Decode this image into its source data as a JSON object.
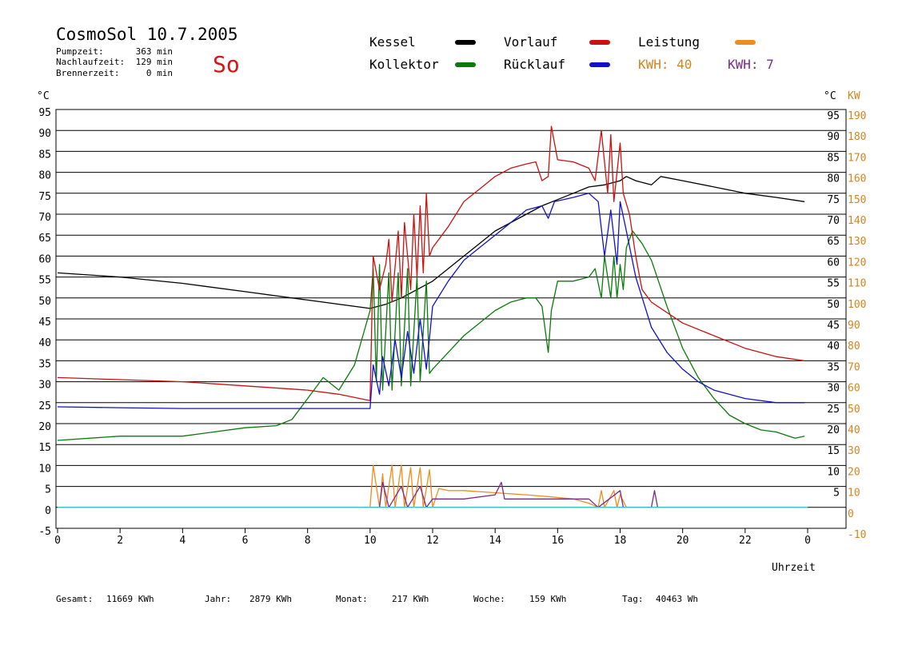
{
  "header": {
    "title": "CosmoSol 10.7.2005",
    "day_label": "So",
    "stats": [
      {
        "label": "Pumpzeit:",
        "value": "363 min"
      },
      {
        "label": "Nachlaufzeit:",
        "value": "129 min"
      },
      {
        "label": "Brennerzeit:",
        "value": "0 min"
      }
    ]
  },
  "legend": {
    "kessel": "Kessel",
    "kollektor": "Kollektor",
    "vorlauf": "Vorlauf",
    "ruecklauf": "Rücklauf",
    "leistung": "Leistung",
    "kwh1": "KWH: 40",
    "kwh2": "KWH: 7"
  },
  "footer": {
    "gesamt_label": "Gesamt:",
    "gesamt_value": "11669 KWh",
    "jahr_label": "Jahr:",
    "jahr_value": "2879 KWh",
    "monat_label": "Monat:",
    "monat_value": "217 KWh",
    "woche_label": "Woche:",
    "woche_value": "159 KWh",
    "tag_label": "Tag:",
    "tag_value": "40463 Wh"
  },
  "chart_data": {
    "type": "line",
    "title": "CosmoSol 10.7.2005",
    "xlabel": "Uhrzeit",
    "ylabel_left": "°C",
    "ylabel_right_c": "°C",
    "ylabel_right_kw": "KW",
    "xlim": [
      0,
      24
    ],
    "ylim": [
      -5,
      95
    ],
    "ylim_kw": [
      -10,
      190
    ],
    "x_ticks": [
      "0",
      "2",
      "4",
      "6",
      "8",
      "10",
      "12",
      "14",
      "16",
      "18",
      "20",
      "22",
      "0"
    ],
    "y_ticks_left": [
      95,
      90,
      85,
      80,
      75,
      70,
      65,
      60,
      55,
      50,
      45,
      40,
      35,
      30,
      25,
      20,
      15,
      10,
      5,
      0,
      -5
    ],
    "y_ticks_right_c": [
      95,
      90,
      85,
      80,
      75,
      70,
      65,
      60,
      55,
      50,
      45,
      40,
      35,
      30,
      25,
      20,
      15,
      10,
      5
    ],
    "y_ticks_kw": [
      190,
      180,
      170,
      160,
      150,
      140,
      130,
      120,
      110,
      100,
      90,
      80,
      70,
      60,
      50,
      40,
      30,
      20,
      10,
      0,
      -10
    ],
    "grid": true,
    "colors": {
      "kessel": "#000000",
      "kollektor": "#0a7a0a",
      "vorlauf": "#cc1111",
      "ruecklauf": "#1111cc",
      "leistung": "#f08c1e",
      "kwh2": "#7a2a8c",
      "baseline": "#33cccc",
      "kw_axis": "#d4841e",
      "day_label": "#dd1111"
    },
    "series": [
      {
        "key": "kessel",
        "name": "Kessel",
        "points": [
          [
            0,
            56
          ],
          [
            2,
            55
          ],
          [
            4,
            53.5
          ],
          [
            6,
            51.5
          ],
          [
            8,
            49.5
          ],
          [
            10,
            47.5
          ],
          [
            10.5,
            48.5
          ],
          [
            11,
            50
          ],
          [
            11.5,
            52
          ],
          [
            12,
            54
          ],
          [
            12.5,
            57
          ],
          [
            13,
            60
          ],
          [
            13.5,
            63
          ],
          [
            14,
            66
          ],
          [
            14.5,
            68
          ],
          [
            15,
            70
          ],
          [
            15.5,
            72
          ],
          [
            16,
            73.5
          ],
          [
            16.5,
            75
          ],
          [
            17,
            76.5
          ],
          [
            17.5,
            77
          ],
          [
            18,
            78
          ],
          [
            18.2,
            79
          ],
          [
            18.5,
            78
          ],
          [
            19,
            77
          ],
          [
            19.3,
            79
          ],
          [
            20,
            78
          ],
          [
            21,
            76.5
          ],
          [
            22,
            75
          ],
          [
            23,
            74
          ],
          [
            23.9,
            73
          ]
        ]
      },
      {
        "key": "kollektor",
        "name": "Kollektor",
        "points": [
          [
            0,
            16
          ],
          [
            2,
            17
          ],
          [
            4,
            17
          ],
          [
            6,
            19
          ],
          [
            7,
            19.5
          ],
          [
            7.5,
            21
          ],
          [
            8,
            26
          ],
          [
            8.5,
            31
          ],
          [
            9,
            28
          ],
          [
            9.5,
            34
          ],
          [
            10,
            47
          ],
          [
            10.1,
            57
          ],
          [
            10.2,
            30
          ],
          [
            10.3,
            58
          ],
          [
            10.4,
            28
          ],
          [
            10.6,
            56
          ],
          [
            10.7,
            28
          ],
          [
            10.9,
            56
          ],
          [
            11,
            29
          ],
          [
            11.2,
            57
          ],
          [
            11.3,
            29
          ],
          [
            11.5,
            55
          ],
          [
            11.6,
            30
          ],
          [
            11.8,
            54
          ],
          [
            11.9,
            32
          ],
          [
            12,
            33
          ],
          [
            12.5,
            37
          ],
          [
            13,
            41
          ],
          [
            13.5,
            44
          ],
          [
            14,
            47
          ],
          [
            14.5,
            49
          ],
          [
            15,
            50
          ],
          [
            15.3,
            50
          ],
          [
            15.5,
            48
          ],
          [
            15.7,
            37
          ],
          [
            15.8,
            47
          ],
          [
            16,
            54
          ],
          [
            16.5,
            54
          ],
          [
            17,
            55
          ],
          [
            17.2,
            57
          ],
          [
            17.4,
            50
          ],
          [
            17.5,
            60
          ],
          [
            17.7,
            50
          ],
          [
            17.8,
            60
          ],
          [
            17.9,
            50
          ],
          [
            18,
            58
          ],
          [
            18.1,
            52
          ],
          [
            18.2,
            62
          ],
          [
            18.4,
            66
          ],
          [
            18.7,
            63
          ],
          [
            19,
            59
          ],
          [
            19.5,
            48
          ],
          [
            20,
            38
          ],
          [
            20.5,
            31
          ],
          [
            21,
            26
          ],
          [
            21.5,
            22
          ],
          [
            22,
            20
          ],
          [
            22.5,
            18.5
          ],
          [
            23,
            18
          ],
          [
            23.4,
            17
          ],
          [
            23.6,
            16.5
          ],
          [
            23.9,
            17
          ]
        ]
      },
      {
        "key": "vorlauf",
        "name": "Vorlauf",
        "points": [
          [
            0,
            31
          ],
          [
            2,
            30.5
          ],
          [
            4,
            30
          ],
          [
            6,
            29
          ],
          [
            8,
            28
          ],
          [
            9,
            27
          ],
          [
            10,
            25.5
          ],
          [
            10.1,
            60
          ],
          [
            10.3,
            52
          ],
          [
            10.5,
            58
          ],
          [
            10.6,
            64
          ],
          [
            10.7,
            49
          ],
          [
            10.9,
            66
          ],
          [
            11,
            50
          ],
          [
            11.1,
            68
          ],
          [
            11.3,
            52
          ],
          [
            11.4,
            70
          ],
          [
            11.5,
            55
          ],
          [
            11.6,
            72
          ],
          [
            11.7,
            56
          ],
          [
            11.8,
            75
          ],
          [
            11.9,
            60
          ],
          [
            12,
            62
          ],
          [
            12.5,
            67
          ],
          [
            13,
            73
          ],
          [
            13.5,
            76
          ],
          [
            14,
            79
          ],
          [
            14.5,
            81
          ],
          [
            15,
            82
          ],
          [
            15.3,
            82.5
          ],
          [
            15.5,
            78
          ],
          [
            15.7,
            79
          ],
          [
            15.8,
            91
          ],
          [
            16,
            83
          ],
          [
            16.5,
            82.5
          ],
          [
            17,
            81
          ],
          [
            17.2,
            78
          ],
          [
            17.4,
            90
          ],
          [
            17.6,
            75
          ],
          [
            17.7,
            89
          ],
          [
            17.8,
            73
          ],
          [
            18,
            87
          ],
          [
            18.1,
            75
          ],
          [
            18.3,
            70
          ],
          [
            18.5,
            60
          ],
          [
            18.7,
            52
          ],
          [
            19,
            49
          ],
          [
            20,
            44
          ],
          [
            21,
            41
          ],
          [
            22,
            38
          ],
          [
            23,
            36
          ],
          [
            23.9,
            35
          ]
        ]
      },
      {
        "key": "ruecklauf",
        "name": "Rücklauf",
        "points": [
          [
            0,
            24
          ],
          [
            2,
            23.8
          ],
          [
            4,
            23.6
          ],
          [
            6,
            23.6
          ],
          [
            8,
            23.6
          ],
          [
            10,
            23.6
          ],
          [
            10.1,
            34
          ],
          [
            10.3,
            27
          ],
          [
            10.4,
            36
          ],
          [
            10.6,
            29
          ],
          [
            10.8,
            40
          ],
          [
            11,
            31
          ],
          [
            11.2,
            42
          ],
          [
            11.4,
            32
          ],
          [
            11.6,
            45
          ],
          [
            11.8,
            33
          ],
          [
            12,
            48
          ],
          [
            12.5,
            54
          ],
          [
            13,
            59
          ],
          [
            13.5,
            62
          ],
          [
            14,
            65
          ],
          [
            14.5,
            68
          ],
          [
            15,
            71
          ],
          [
            15.5,
            72
          ],
          [
            15.7,
            69
          ],
          [
            15.9,
            73
          ],
          [
            16.5,
            74
          ],
          [
            17,
            75
          ],
          [
            17.3,
            73
          ],
          [
            17.5,
            60
          ],
          [
            17.7,
            71
          ],
          [
            17.9,
            58
          ],
          [
            18,
            73
          ],
          [
            18.2,
            66
          ],
          [
            18.5,
            55
          ],
          [
            19,
            43
          ],
          [
            19.5,
            37
          ],
          [
            20,
            33
          ],
          [
            20.5,
            30
          ],
          [
            21,
            28
          ],
          [
            22,
            26
          ],
          [
            23,
            25
          ],
          [
            23.9,
            25
          ]
        ]
      },
      {
        "key": "leistung",
        "name": "Leistung",
        "unit": "KW",
        "points": [
          [
            10,
            0
          ],
          [
            10.1,
            20
          ],
          [
            10.3,
            0
          ],
          [
            10.4,
            16
          ],
          [
            10.5,
            0
          ],
          [
            10.7,
            20
          ],
          [
            10.8,
            0
          ],
          [
            11,
            20
          ],
          [
            11.1,
            0
          ],
          [
            11.3,
            19
          ],
          [
            11.4,
            0
          ],
          [
            11.6,
            19
          ],
          [
            11.7,
            0
          ],
          [
            11.9,
            18
          ],
          [
            12,
            0
          ],
          [
            12.2,
            9
          ],
          [
            12.5,
            8
          ],
          [
            13,
            8
          ],
          [
            14,
            7
          ],
          [
            15,
            6
          ],
          [
            15.8,
            5
          ],
          [
            16.5,
            4
          ],
          [
            17,
            2
          ],
          [
            17.3,
            0
          ],
          [
            17.4,
            8
          ],
          [
            17.5,
            0
          ],
          [
            17.8,
            8
          ],
          [
            17.9,
            0
          ],
          [
            18,
            6
          ],
          [
            18.2,
            0
          ]
        ]
      },
      {
        "key": "kwh2",
        "name": "KWH: 7",
        "points": [
          [
            10,
            0
          ],
          [
            10.3,
            0
          ],
          [
            10.4,
            6
          ],
          [
            10.6,
            0
          ],
          [
            11,
            5
          ],
          [
            11.2,
            0
          ],
          [
            11.6,
            5
          ],
          [
            11.8,
            0
          ],
          [
            12,
            2
          ],
          [
            13,
            2
          ],
          [
            14,
            3
          ],
          [
            14.2,
            6
          ],
          [
            14.3,
            2
          ],
          [
            15,
            2
          ],
          [
            16,
            2
          ],
          [
            17,
            2
          ],
          [
            17.3,
            0
          ],
          [
            18,
            4
          ],
          [
            18.1,
            0
          ],
          [
            19,
            0
          ],
          [
            19.1,
            4
          ],
          [
            19.2,
            0
          ]
        ]
      },
      {
        "key": "baseline",
        "name": "",
        "points": [
          [
            0,
            0
          ],
          [
            24,
            0
          ]
        ]
      }
    ]
  }
}
